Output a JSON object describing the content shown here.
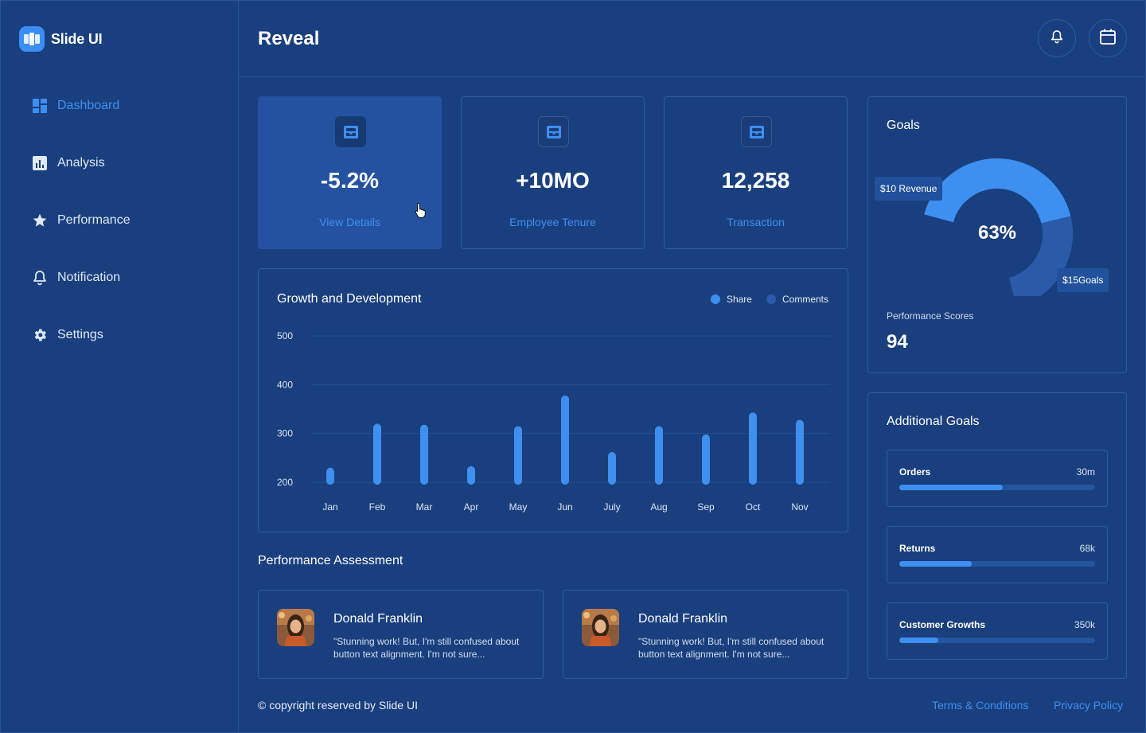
{
  "brand": {
    "name": "Slide UI",
    "logo_icon": "slides-logo-icon"
  },
  "sidebar": {
    "items": [
      {
        "label": "Dashboard",
        "icon": "dashboard-icon",
        "active": true
      },
      {
        "label": "Analysis",
        "icon": "analysis-icon",
        "active": false
      },
      {
        "label": "Performance",
        "icon": "star-icon",
        "active": false
      },
      {
        "label": "Notification",
        "icon": "bell-icon",
        "active": false
      },
      {
        "label": "Settings",
        "icon": "gear-icon",
        "active": false
      }
    ]
  },
  "header": {
    "title": "Reveal",
    "actions": [
      "bell-icon",
      "calendar-icon"
    ]
  },
  "stats": [
    {
      "value": "-5.2%",
      "link": "View Details",
      "active": true
    },
    {
      "value": "+10MO",
      "link": "Employee Tenure",
      "active": false
    },
    {
      "value": "12,258",
      "link": "Transaction",
      "active": false
    }
  ],
  "chart_card": {
    "legend": [
      {
        "label": "Share",
        "color": "#3d8ff0"
      },
      {
        "label": "Comments",
        "color": "#2a5ab0"
      }
    ]
  },
  "chart_data": {
    "type": "bar",
    "title": "Growth and Development",
    "categories": [
      "Jan",
      "Feb",
      "Mar",
      "Apr",
      "May",
      "Jun",
      "July",
      "Aug",
      "Sep",
      "Oct",
      "Nov"
    ],
    "series": [
      {
        "name": "Share",
        "values": [
          230,
          320,
          318,
          233,
          315,
          378,
          262,
          315,
          298,
          343,
          328
        ]
      }
    ],
    "yticks": [
      200,
      300,
      400,
      500
    ],
    "ylim": [
      200,
      500
    ],
    "grid": true,
    "legend_position": "top-right"
  },
  "assessment": {
    "title": "Performance Assessment",
    "reviews": [
      {
        "name": "Donald Franklin",
        "text": "\"Stunning work! But, I'm still confused about button text alignment. I'm not sure..."
      },
      {
        "name": "Donald Franklin",
        "text": "\"Stunning work! But, I'm still confused about button text alignment. I'm not sure..."
      }
    ]
  },
  "goals": {
    "title": "Goals",
    "percent": "63%",
    "percent_value": 63,
    "revenue_tag": "$10 Revenue",
    "goals_tag": "$15Goals",
    "performance_label": "Performance Scores",
    "performance_value": "94",
    "accent": "#3d8ff0",
    "track": "#2a5aa8"
  },
  "additional_goals": {
    "title": "Additional Goals",
    "items": [
      {
        "label": "Orders",
        "value": "30m",
        "progress": 0.53
      },
      {
        "label": "Returns",
        "value": "68k",
        "progress": 0.37
      },
      {
        "label": "Customer Growths",
        "value": "350k",
        "progress": 0.2
      }
    ]
  },
  "footer": {
    "copyright": "© copyright reserved by Slide UI",
    "links": [
      "Terms & Conditions",
      "Privacy Policy"
    ]
  }
}
